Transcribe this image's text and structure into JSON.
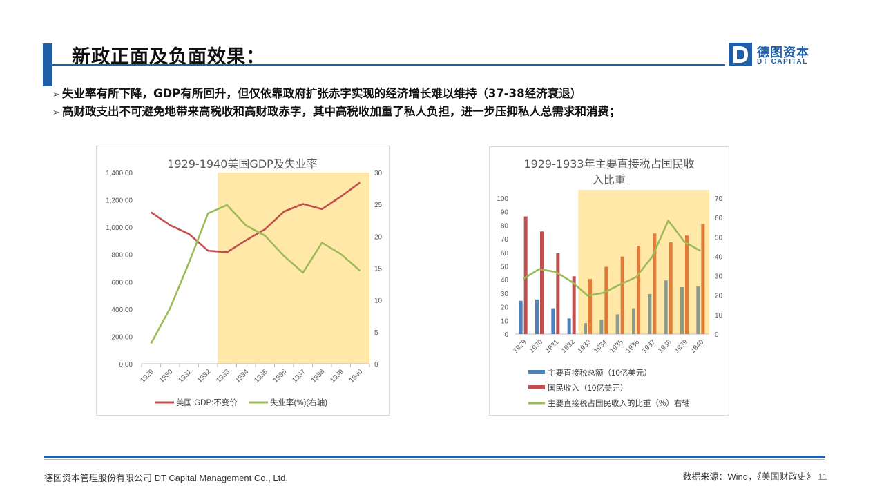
{
  "slide": {
    "title": "新政正面及负面效果：",
    "logo_cn": "德图资本",
    "logo_en": "DT CAPITAL",
    "logo_letter": "D",
    "bullets": [
      "失业率有所下降，GDP有所回升，但仅依靠政府扩张赤字实现的经济增长难以维持（37-38经济衰退）",
      "高财政支出不可避免地带来高税收和高财政赤字，其中高税收加重了私人负担，进一步压抑私人总需求和消费；"
    ],
    "bullet_marker": "➢",
    "footer_left": "德图资本管理股份有限公司  DT Capital  Management  Co., Ltd.",
    "footer_right": "数据来源：Wind，《美国财政史》",
    "page_number": "11"
  },
  "colors": {
    "brand_blue": "#1f5fa8",
    "highlight": "#ffe8a8",
    "gdp_line": "#c0504d",
    "unemp_line": "#9bbb59",
    "tax_bar": "#4f81bd",
    "tax_bar_late": "#8c9a8e",
    "income_bar": "#c0504d",
    "income_bar_late": "#e07b39",
    "ratio_line": "#9bbb59"
  },
  "chart_data": [
    {
      "type": "line",
      "title": "1929-1940美国GDP及失业率",
      "categories": [
        "1929",
        "1930",
        "1931",
        "1932",
        "1933",
        "1934",
        "1935",
        "1936",
        "1937",
        "1938",
        "1939",
        "1940"
      ],
      "series": [
        {
          "name": "美国:GDP:不变价",
          "axis": "left",
          "values": [
            1109,
            1015,
            950,
            828,
            817,
            905,
            985,
            1115,
            1170,
            1133,
            1225,
            1327
          ]
        },
        {
          "name": "失业率(%)(右轴)",
          "axis": "right",
          "values": [
            3.2,
            8.7,
            15.9,
            23.6,
            24.9,
            21.7,
            20.1,
            16.9,
            14.3,
            19.0,
            17.2,
            14.6
          ]
        }
      ],
      "left_axis": {
        "min": 0,
        "max": 1400,
        "ticks": [
          "0.00",
          "200.00",
          "400.00",
          "600.00",
          "800.00",
          "1,000.00",
          "1,200.00",
          "1,400.00"
        ]
      },
      "right_axis": {
        "min": 0,
        "max": 30,
        "ticks": [
          "0",
          "5",
          "10",
          "15",
          "20",
          "25",
          "30"
        ]
      },
      "highlight_range": [
        "1933",
        "1940"
      ],
      "legend": "bottom",
      "grid": false
    },
    {
      "type": "bar",
      "title_lines": [
        "1929-1933年主要直接税占国民收",
        "入比重"
      ],
      "categories": [
        "1929",
        "1930",
        "1931",
        "1932",
        "1933",
        "1934",
        "1935",
        "1936",
        "1937",
        "1938",
        "1939",
        "1940"
      ],
      "series": [
        {
          "name": "主要直接税总额（10亿美元）",
          "type": "bar",
          "axis": "left",
          "values": [
            24.5,
            25.5,
            19,
            11.5,
            8,
            10.5,
            14.5,
            19,
            29.5,
            39.5,
            34.5,
            35
          ]
        },
        {
          "name": "国民收入（10亿美元）",
          "type": "bar",
          "axis": "left",
          "values": [
            86.5,
            75.5,
            59.5,
            42.5,
            40.5,
            49.5,
            57,
            65,
            74,
            67.5,
            72.5,
            81
          ]
        },
        {
          "name": "主要直接税占国民收入的比重（%）右轴",
          "type": "line",
          "axis": "right",
          "values": [
            28.5,
            33.5,
            32,
            27,
            19.8,
            21.3,
            25.5,
            29.3,
            39.8,
            58.5,
            47.5,
            42.8
          ]
        }
      ],
      "left_axis": {
        "min": 0,
        "max": 100,
        "ticks": [
          "0",
          "10",
          "20",
          "30",
          "40",
          "50",
          "60",
          "70",
          "80",
          "90",
          "100"
        ]
      },
      "right_axis": {
        "min": 0,
        "max": 70,
        "ticks": [
          "0",
          "10",
          "20",
          "30",
          "40",
          "50",
          "60",
          "70"
        ]
      },
      "highlight_range": [
        "1933",
        "1940"
      ],
      "legend": "bottom",
      "grid": false
    }
  ]
}
